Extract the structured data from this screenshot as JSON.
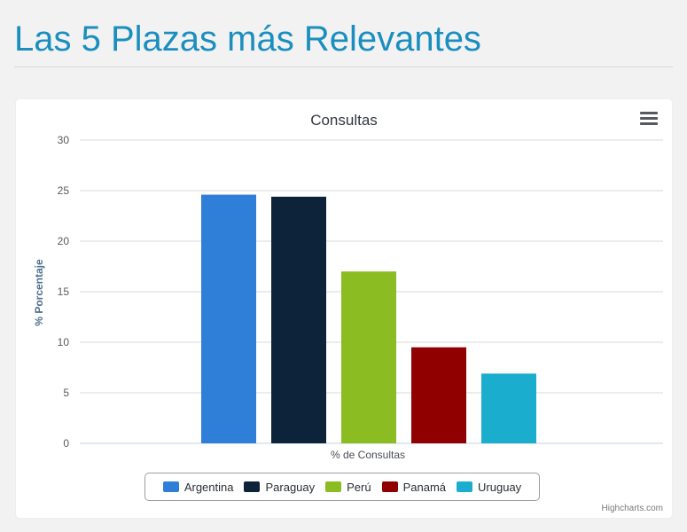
{
  "page": {
    "title": "Las 5 Plazas más Relevantes"
  },
  "menu": {
    "icon": "hamburger-menu-icon"
  },
  "credits": "Highcharts.com",
  "chart_data": {
    "type": "bar",
    "title": "Consultas",
    "xlabel": "% de Consultas",
    "ylabel": "% Porcentaje",
    "ylim": [
      0,
      30
    ],
    "yticks": [
      0,
      5,
      10,
      15,
      20,
      25,
      30
    ],
    "grid": true,
    "legend_position": "bottom-center",
    "categories": [
      "% de Consultas"
    ],
    "series": [
      {
        "name": "Argentina",
        "values": [
          24.6
        ],
        "color": "#2f7ed8"
      },
      {
        "name": "Paraguay",
        "values": [
          24.4
        ],
        "color": "#0d233a"
      },
      {
        "name": "Perú",
        "values": [
          17.0
        ],
        "color": "#8bbc21"
      },
      {
        "name": "Panamá",
        "values": [
          9.5
        ],
        "color": "#910000"
      },
      {
        "name": "Uruguay",
        "values": [
          6.9
        ],
        "color": "#1aadce"
      }
    ]
  }
}
